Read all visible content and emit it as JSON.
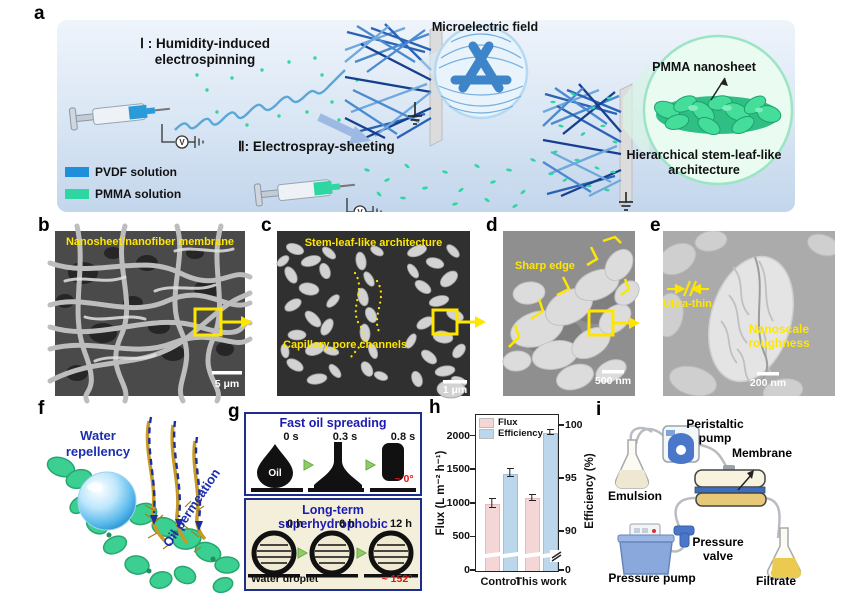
{
  "letters": {
    "a": "a",
    "b": "b",
    "c": "c",
    "d": "d",
    "e": "e",
    "f": "f",
    "g": "g",
    "h": "h",
    "i": "i"
  },
  "panel_a": {
    "step1_line1": "Ⅰ :  Humidity-induced",
    "step1_line2": "electrospinning",
    "step2": "Ⅱ:  Electrospray-sheeting",
    "microelectric_field": "Microelectric field",
    "pmma_nanosheet": "PMMA nanosheet",
    "hierarchical_line1": "Hierarchical stem-leaf-like",
    "hierarchical_line2": "architecture",
    "legend": [
      {
        "label": "PVDF solution",
        "color": "#1e8fd8"
      },
      {
        "label": "PMMA solution",
        "color": "#2ed6a1"
      }
    ]
  },
  "panel_b": {
    "caption": "Nanosheet/nanofiber membrane",
    "scale_label": "5 μm"
  },
  "panel_c": {
    "caption": "Stem-leaf-like architecture",
    "annotation": "Capillary pore channels",
    "scale_label": "1 μm"
  },
  "panel_d": {
    "annotation": "Sharp edge",
    "scale_label": "500 nm"
  },
  "panel_e": {
    "annotation_thin": "Ultra-thin",
    "annotation_rough_line1": "Nanoscale",
    "annotation_rough_line2": "roughness",
    "scale_label": "200 nm"
  },
  "panel_f": {
    "water_line1": "Water",
    "water_line2": "repellency",
    "oil": "Oil permeation"
  },
  "panel_g": {
    "top_title": "Fast oil spreading",
    "top_times": [
      "0 s",
      "0.3 s",
      "0.8 s"
    ],
    "oil_label": "Oil",
    "top_angle": "~ 0°",
    "bottom_title": "Long-term superhydrophobic",
    "bottom_times": [
      "0 h",
      "6 h",
      "12 h"
    ],
    "bottom_caption": "Water droplet",
    "bottom_angle": "~ 152°"
  },
  "panel_h": {
    "chart_data": {
      "type": "bar",
      "categories": [
        "Control",
        "This work"
      ],
      "series": [
        {
          "name": "Flux",
          "axis": "left",
          "color": "#f5d6d6",
          "edge": "#eab9b9",
          "values": [
            1000,
            1080
          ],
          "errors": [
            60,
            35
          ]
        },
        {
          "name": "Efficiency",
          "axis": "right",
          "color": "#bcd6eb",
          "edge": "#9cc0dd",
          "values": [
            95.5,
            99.3
          ],
          "errors": [
            0.3,
            0.2
          ]
        }
      ],
      "left_axis": {
        "label": "Flux (L m⁻² h⁻¹)",
        "ticks": [
          0,
          500,
          1000,
          1500,
          2000
        ],
        "range": [
          0,
          2290
        ]
      },
      "right_axis": {
        "label": "Efficiency (%)",
        "ticks": [
          0,
          90,
          95,
          100
        ],
        "broken": true
      },
      "legend_position": "top-left",
      "grid": false
    }
  },
  "panel_i": {
    "labels": {
      "peristaltic_line1": "Peristaltic",
      "peristaltic_line2": "pump",
      "membrane": "Membrane",
      "emulsion": "Emulsion",
      "valve_line1": "Pressure",
      "valve_line2": "valve",
      "pump": "Pressure pump",
      "filtrate": "Filtrate"
    }
  }
}
